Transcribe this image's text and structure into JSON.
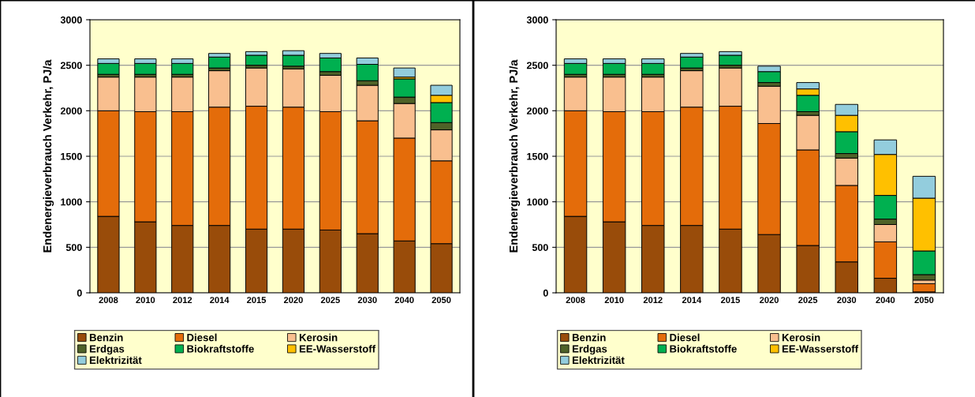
{
  "chart_data": [
    {
      "type": "bar",
      "stacked": true,
      "ylabel": "Endenergieverbrauch Verkehr, PJ/a",
      "categories": [
        "2008",
        "2010",
        "2012",
        "2014",
        "2015",
        "2020",
        "2025",
        "2030",
        "2040",
        "2050"
      ],
      "ylim": [
        0,
        3000
      ],
      "yticks": [
        0,
        500,
        1000,
        1500,
        2000,
        2500,
        3000
      ],
      "grid": "y",
      "legend": "bottom",
      "series": [
        {
          "name": "Benzin",
          "color": "#994c0a",
          "values": [
            840,
            780,
            740,
            740,
            700,
            700,
            690,
            650,
            570,
            540
          ]
        },
        {
          "name": "Diesel",
          "color": "#e46c0a",
          "values": [
            1160,
            1210,
            1250,
            1300,
            1350,
            1340,
            1300,
            1240,
            1130,
            910
          ]
        },
        {
          "name": "Kerosin",
          "color": "#f9bf8f",
          "values": [
            370,
            380,
            380,
            400,
            420,
            420,
            400,
            390,
            380,
            340
          ]
        },
        {
          "name": "Erdgas",
          "color": "#4f6228",
          "values": [
            30,
            30,
            30,
            30,
            30,
            30,
            40,
            50,
            70,
            80
          ]
        },
        {
          "name": "Biokraftstoffe",
          "color": "#00b050",
          "values": [
            120,
            120,
            120,
            120,
            110,
            120,
            150,
            180,
            200,
            220
          ]
        },
        {
          "name": "EE-Wasserstoff",
          "color": "#ffc000",
          "values": [
            null,
            null,
            null,
            null,
            null,
            null,
            null,
            null,
            20,
            80
          ]
        },
        {
          "name": "Elektrizität",
          "color": "#93cddd",
          "values": [
            50,
            50,
            50,
            40,
            40,
            50,
            50,
            70,
            100,
            110
          ]
        }
      ]
    },
    {
      "type": "bar",
      "stacked": true,
      "ylabel": "Endenergieverbrauch Verkehr, PJ/a",
      "categories": [
        "2008",
        "2010",
        "2012",
        "2014",
        "2015",
        "2020",
        "2025",
        "2030",
        "2040",
        "2050"
      ],
      "ylim": [
        0,
        3000
      ],
      "yticks": [
        0,
        500,
        1000,
        1500,
        2000,
        2500,
        3000
      ],
      "grid": "y",
      "legend": "bottom",
      "series": [
        {
          "name": "Benzin",
          "color": "#994c0a",
          "values": [
            840,
            780,
            740,
            740,
            700,
            640,
            520,
            340,
            160,
            10
          ]
        },
        {
          "name": "Diesel",
          "color": "#e46c0a",
          "values": [
            1160,
            1210,
            1250,
            1300,
            1350,
            1220,
            1050,
            840,
            400,
            90
          ]
        },
        {
          "name": "Kerosin",
          "color": "#f9bf8f",
          "values": [
            370,
            380,
            380,
            400,
            420,
            410,
            380,
            300,
            190,
            40
          ]
        },
        {
          "name": "Erdgas",
          "color": "#4f6228",
          "values": [
            30,
            30,
            30,
            30,
            30,
            40,
            40,
            50,
            60,
            60
          ]
        },
        {
          "name": "Biokraftstoffe",
          "color": "#00b050",
          "values": [
            120,
            120,
            120,
            120,
            110,
            120,
            180,
            240,
            260,
            260
          ]
        },
        {
          "name": "EE-Wasserstoff",
          "color": "#ffc000",
          "values": [
            null,
            null,
            null,
            null,
            null,
            null,
            70,
            180,
            450,
            580
          ]
        },
        {
          "name": "Elektrizität",
          "color": "#93cddd",
          "values": [
            50,
            50,
            50,
            40,
            40,
            60,
            70,
            120,
            160,
            240
          ]
        }
      ]
    }
  ]
}
